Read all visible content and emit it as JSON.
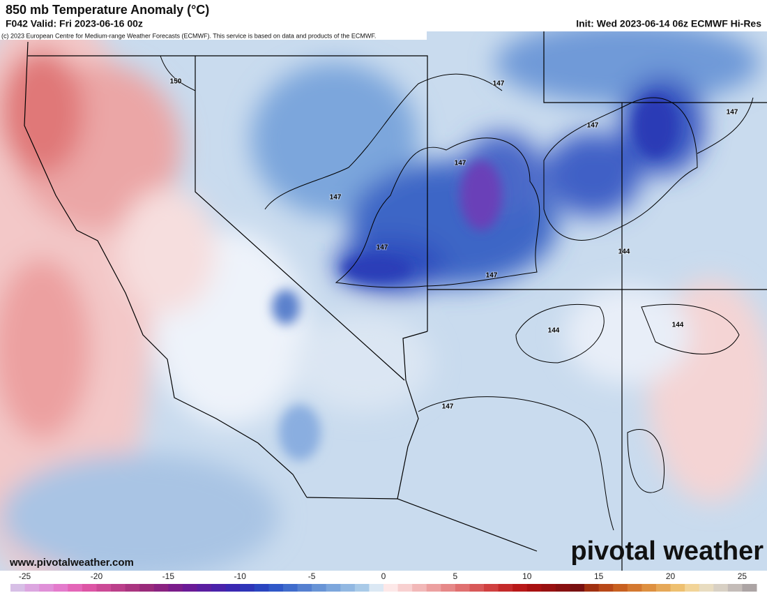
{
  "header": {
    "title": "850 mb Temperature Anomaly (°C)",
    "valid": "F042 Valid: Fri 2023-06-16 00z",
    "init": "Init: Wed 2023-06-14 06z ECMWF Hi-Res",
    "copyright": "(c) 2023 European Centre for Medium-range Weather Forecasts (ECMWF). This service is based on data and products of the ECMWF."
  },
  "map": {
    "contour_labels": [
      150,
      147,
      147,
      147,
      147,
      147,
      147,
      147,
      147,
      144,
      144,
      144
    ]
  },
  "footer": {
    "website": "www.pivotalweather.com",
    "logo": "pivotal weather"
  },
  "colorbar": {
    "range": [
      -26,
      26
    ],
    "ticks": [
      -25,
      -20,
      -15,
      -10,
      -5,
      0,
      5,
      10,
      15,
      20,
      25
    ],
    "colors": [
      "#d7bfe6",
      "#dca6e0",
      "#e090d8",
      "#e47bcc",
      "#e466b8",
      "#dd55a5",
      "#cc4a96",
      "#bb3f8a",
      "#aa3580",
      "#992a7a",
      "#8a2280",
      "#7a1c8a",
      "#6a1a96",
      "#5a1ea0",
      "#4a22aa",
      "#3a28b2",
      "#2e35b8",
      "#2a45c0",
      "#3058c8",
      "#406ccc",
      "#5580d0",
      "#6894d6",
      "#7ca6dc",
      "#92b8e2",
      "#a9cae8",
      "#dbe8f4",
      "#fde8e8",
      "#f8d0d0",
      "#f2b8b8",
      "#eca0a0",
      "#e68888",
      "#e07070",
      "#d85858",
      "#d04040",
      "#c42a2a",
      "#b81818",
      "#a81010",
      "#981010",
      "#881010",
      "#781010",
      "#a03010",
      "#b84818",
      "#c86020",
      "#d47830",
      "#de9040",
      "#e6a858",
      "#eec070",
      "#f2d498",
      "#e8dcc0",
      "#d8d0c4",
      "#c4bcb8",
      "#aca4a4"
    ]
  }
}
